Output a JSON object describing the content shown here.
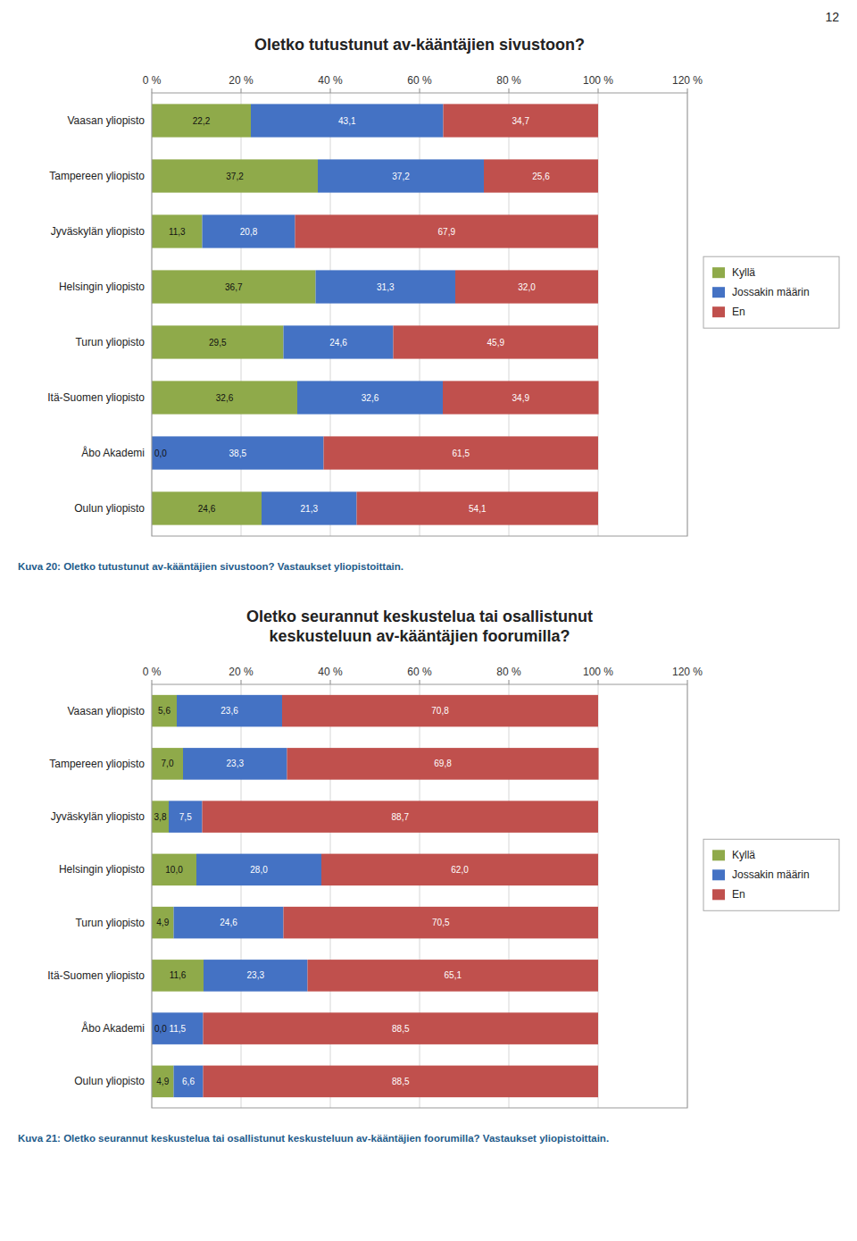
{
  "page_number": "12",
  "chart_data": [
    {
      "type": "bar",
      "orientation": "horizontal",
      "stacked": true,
      "data_labels": true,
      "grid": true,
      "legend": "right",
      "title": "Oletko tutustunut av-kääntäjien sivustoon?",
      "caption": "Kuva 20: Oletko tutustunut av-kääntäjien sivustoon? Vastaukset yliopistoittain.",
      "categories": [
        "Vaasan yliopisto",
        "Tampereen yliopisto",
        "Jyväskylän yliopisto",
        "Helsingin yliopisto",
        "Turun yliopisto",
        "Itä-Suomen yliopisto",
        "Åbo Akademi",
        "Oulun yliopisto"
      ],
      "series": [
        {
          "name": "Kyllä",
          "color": "#8faa4a",
          "values": [
            22.2,
            37.2,
            11.3,
            36.7,
            29.5,
            32.6,
            0.0,
            24.6
          ],
          "value_labels": [
            "22,2",
            "37,2",
            "11,3",
            "36,7",
            "29,5",
            "32,6",
            "0,0",
            "24,6"
          ]
        },
        {
          "name": "Jossakin määrin",
          "color": "#4472c4",
          "values": [
            43.1,
            37.2,
            20.8,
            31.3,
            24.6,
            32.6,
            38.5,
            21.3
          ],
          "value_labels": [
            "43,1",
            "37,2",
            "20,8",
            "31,3",
            "24,6",
            "32,6",
            "38,5",
            "21,3"
          ]
        },
        {
          "name": "En",
          "color": "#c0504d",
          "values": [
            34.7,
            25.6,
            67.9,
            32.0,
            45.9,
            34.9,
            61.5,
            54.1
          ],
          "value_labels": [
            "34,7",
            "25,6",
            "67,9",
            "32,0",
            "45,9",
            "34,9",
            "61,5",
            "54,1"
          ]
        }
      ],
      "xlim": [
        0,
        120
      ],
      "xticks": [
        {
          "value": 0,
          "label": "0 %"
        },
        {
          "value": 20,
          "label": "20 %"
        },
        {
          "value": 40,
          "label": "40 %"
        },
        {
          "value": 60,
          "label": "60 %"
        },
        {
          "value": 80,
          "label": "80 %"
        },
        {
          "value": 100,
          "label": "100 %"
        },
        {
          "value": 120,
          "label": "120 %"
        }
      ]
    },
    {
      "type": "bar",
      "orientation": "horizontal",
      "stacked": true,
      "data_labels": true,
      "grid": true,
      "legend": "right",
      "title": "Oletko seurannut keskustelua tai osallistunut\nkeskusteluun av-kääntäjien foorumilla?",
      "caption": "Kuva 21: Oletko seurannut keskustelua tai osallistunut keskusteluun av-kääntäjien foorumilla? Vastaukset yliopistoittain.",
      "categories": [
        "Vaasan yliopisto",
        "Tampereen yliopisto",
        "Jyväskylän yliopisto",
        "Helsingin yliopisto",
        "Turun yliopisto",
        "Itä-Suomen yliopisto",
        "Åbo Akademi",
        "Oulun yliopisto"
      ],
      "series": [
        {
          "name": "Kyllä",
          "color": "#8faa4a",
          "values": [
            5.6,
            7.0,
            3.8,
            10.0,
            4.9,
            11.6,
            0.0,
            4.9
          ],
          "value_labels": [
            "5,6",
            "7,0",
            "3,8",
            "10,0",
            "4,9",
            "11,6",
            "0,0",
            "4,9"
          ]
        },
        {
          "name": "Jossakin määrin",
          "color": "#4472c4",
          "values": [
            23.6,
            23.3,
            7.5,
            28.0,
            24.6,
            23.3,
            11.5,
            6.6
          ],
          "value_labels": [
            "23,6",
            "23,3",
            "7,5",
            "28,0",
            "24,6",
            "23,3",
            "11,5",
            "6,6"
          ]
        },
        {
          "name": "En",
          "color": "#c0504d",
          "values": [
            70.8,
            69.8,
            88.7,
            62.0,
            70.5,
            65.1,
            88.5,
            88.5
          ],
          "value_labels": [
            "70,8",
            "69,8",
            "88,7",
            "62,0",
            "70,5",
            "65,1",
            "88,5",
            "88,5"
          ]
        }
      ],
      "xlim": [
        0,
        120
      ],
      "xticks": [
        {
          "value": 0,
          "label": "0 %"
        },
        {
          "value": 20,
          "label": "20 %"
        },
        {
          "value": 40,
          "label": "40 %"
        },
        {
          "value": 60,
          "label": "60 %"
        },
        {
          "value": 80,
          "label": "80 %"
        },
        {
          "value": 100,
          "label": "100 %"
        },
        {
          "value": 120,
          "label": "120 %"
        }
      ]
    }
  ]
}
